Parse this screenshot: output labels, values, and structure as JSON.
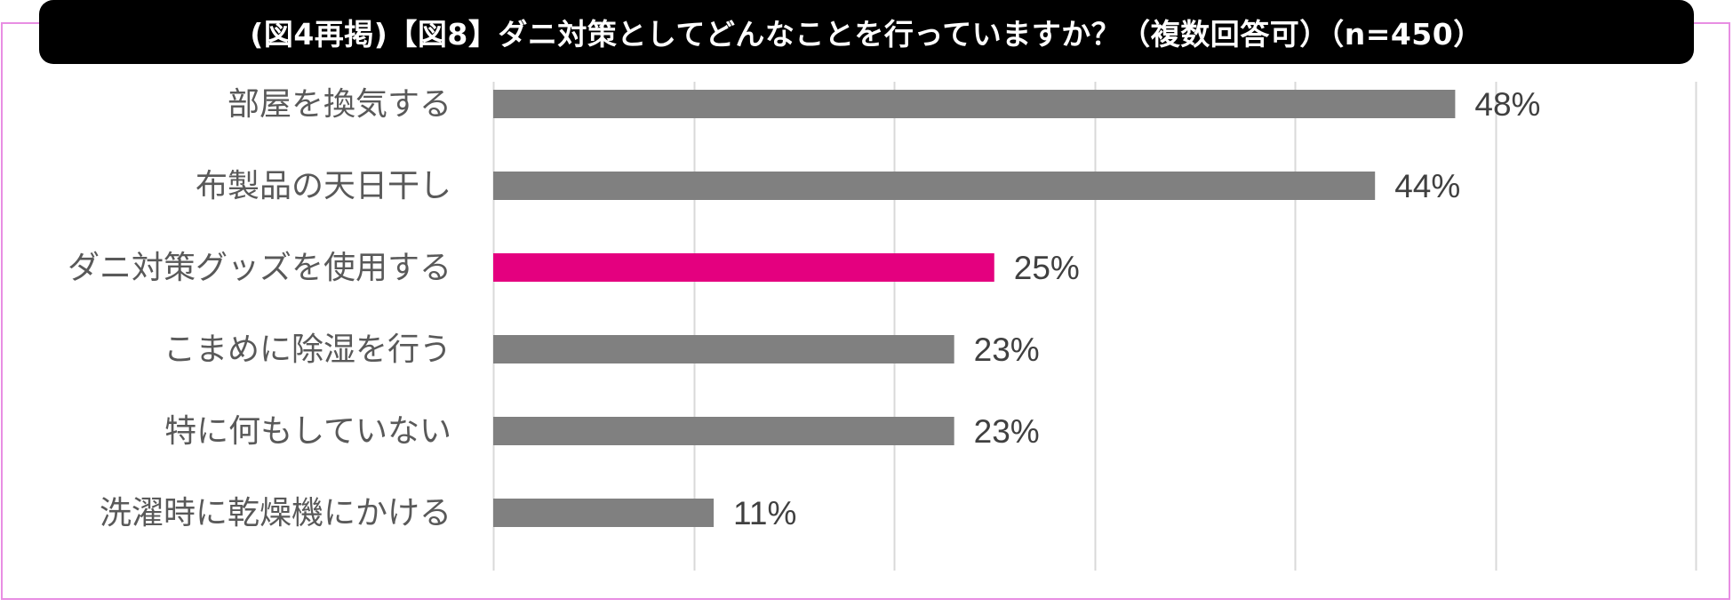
{
  "title": "(図4再掲)【図8】ダニ対策としてどんなことを行っていますか？（複数回答可）（n=450）",
  "colors": {
    "default_bar": "#808080",
    "highlight_bar": "#e4007f",
    "gridline": "#d9d9d9",
    "label_text": "#595959",
    "value_text": "#404040",
    "frame_border": "#e88ee3"
  },
  "chart_data": {
    "type": "bar",
    "orientation": "horizontal",
    "categories": [
      "部屋を換気する",
      "布製品の天日干し",
      "ダニ対策グッズを使用する",
      "こまめに除湿を行う",
      "特に何もしていない",
      "洗濯時に乾燥機にかける"
    ],
    "values": [
      48,
      44,
      25,
      23,
      23,
      11
    ],
    "value_labels": [
      "48%",
      "44%",
      "25%",
      "23%",
      "23%",
      "11%"
    ],
    "highlight_index": 2,
    "xlim": [
      0,
      60
    ],
    "grid": true,
    "legend": "none"
  }
}
